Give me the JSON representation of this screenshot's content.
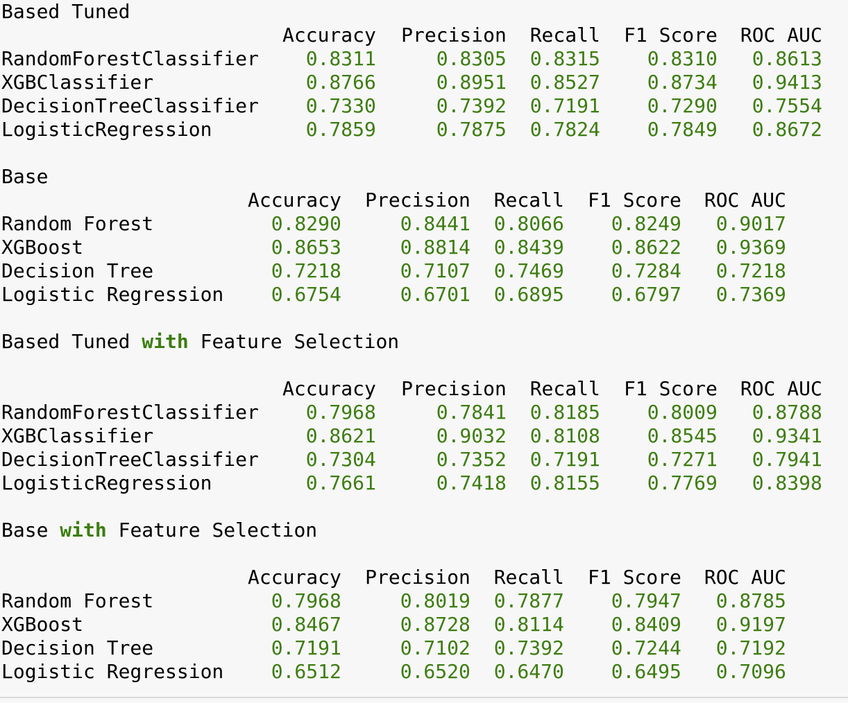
{
  "colors": {
    "background": "#f7f7f7",
    "text": "#000000",
    "number": "#3d7d10",
    "keyword": "#3d7d10"
  },
  "columns": [
    "Accuracy",
    "Precision",
    "Recall",
    "F1 Score",
    "ROC AUC"
  ],
  "sections": [
    {
      "title_before": "Based Tuned",
      "keyword": "",
      "title_after": "",
      "blank_after_title": false,
      "rows": [
        {
          "name": "RandomForestClassifier",
          "values": [
            "0.8311",
            "0.8305",
            "0.8315",
            "0.8310",
            "0.8613"
          ]
        },
        {
          "name": "XGBClassifier",
          "values": [
            "0.8766",
            "0.8951",
            "0.8527",
            "0.8734",
            "0.9413"
          ]
        },
        {
          "name": "DecisionTreeClassifier",
          "values": [
            "0.7330",
            "0.7392",
            "0.7191",
            "0.7290",
            "0.7554"
          ]
        },
        {
          "name": "LogisticRegression",
          "values": [
            "0.7859",
            "0.7875",
            "0.7824",
            "0.7849",
            "0.8672"
          ]
        }
      ]
    },
    {
      "title_before": "Base",
      "keyword": "",
      "title_after": "",
      "blank_after_title": false,
      "rows": [
        {
          "name": "Random Forest",
          "values": [
            "0.8290",
            "0.8441",
            "0.8066",
            "0.8249",
            "0.9017"
          ]
        },
        {
          "name": "XGBoost",
          "values": [
            "0.8653",
            "0.8814",
            "0.8439",
            "0.8622",
            "0.9369"
          ]
        },
        {
          "name": "Decision Tree",
          "values": [
            "0.7218",
            "0.7107",
            "0.7469",
            "0.7284",
            "0.7218"
          ]
        },
        {
          "name": "Logistic Regression",
          "values": [
            "0.6754",
            "0.6701",
            "0.6895",
            "0.6797",
            "0.7369"
          ]
        }
      ]
    },
    {
      "title_before": "Based Tuned ",
      "keyword": "with",
      "title_after": " Feature Selection",
      "blank_after_title": true,
      "rows": [
        {
          "name": "RandomForestClassifier",
          "values": [
            "0.7968",
            "0.7841",
            "0.8185",
            "0.8009",
            "0.8788"
          ]
        },
        {
          "name": "XGBClassifier",
          "values": [
            "0.8621",
            "0.9032",
            "0.8108",
            "0.8545",
            "0.9341"
          ]
        },
        {
          "name": "DecisionTreeClassifier",
          "values": [
            "0.7304",
            "0.7352",
            "0.7191",
            "0.7271",
            "0.7941"
          ]
        },
        {
          "name": "LogisticRegression",
          "values": [
            "0.7661",
            "0.7418",
            "0.8155",
            "0.7769",
            "0.8398"
          ]
        }
      ]
    },
    {
      "title_before": "Base ",
      "keyword": "with",
      "title_after": " Feature Selection",
      "blank_after_title": true,
      "rows": [
        {
          "name": "Random Forest",
          "values": [
            "0.7968",
            "0.8019",
            "0.7877",
            "0.7947",
            "0.8785"
          ]
        },
        {
          "name": "XGBoost",
          "values": [
            "0.8467",
            "0.8728",
            "0.8114",
            "0.8409",
            "0.9197"
          ]
        },
        {
          "name": "Decision Tree",
          "values": [
            "0.7191",
            "0.7102",
            "0.7392",
            "0.7244",
            "0.7192"
          ]
        },
        {
          "name": "Logistic Regression",
          "values": [
            "0.6512",
            "0.6520",
            "0.6470",
            "0.6495",
            "0.7096"
          ]
        }
      ]
    }
  ]
}
